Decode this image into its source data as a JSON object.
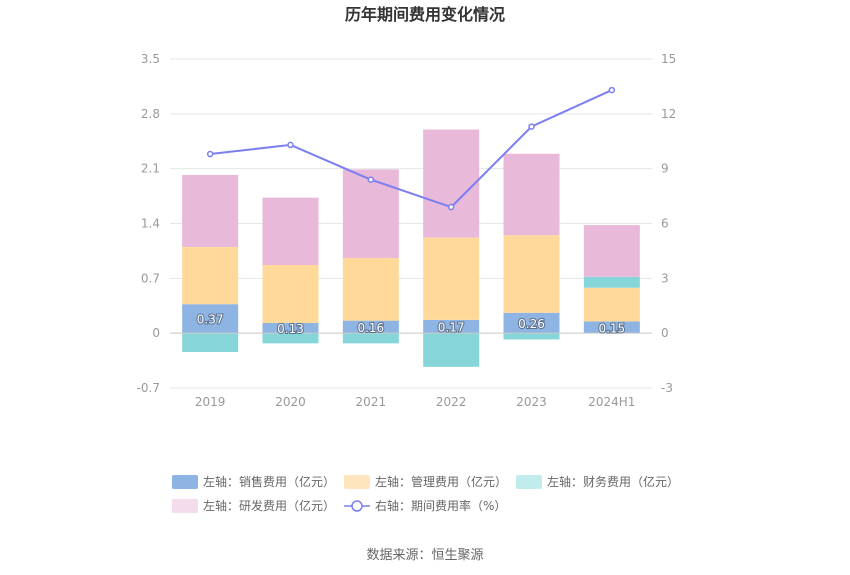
{
  "chart_data": {
    "type": "bar",
    "title": "历年期间费用变化情况",
    "categories": [
      "2019",
      "2020",
      "2021",
      "2022",
      "2023",
      "2024H1"
    ],
    "left_axis": {
      "ticks": [
        "3.5",
        "2.8",
        "2.1",
        "1.4",
        "0.7",
        "0",
        "-0.7"
      ],
      "ylim": [
        -0.7,
        3.5
      ]
    },
    "right_axis": {
      "ticks": [
        "15",
        "12",
        "9",
        "6",
        "3",
        "0",
        "-3"
      ],
      "ylim": [
        -3,
        15
      ]
    },
    "series": [
      {
        "name": "左轴：销售费用（亿元）",
        "axis": "left",
        "color": "#8eb4e3",
        "values": [
          0.37,
          0.13,
          0.16,
          0.17,
          0.26,
          0.15
        ],
        "labels": [
          "0.37",
          "0.13",
          "0.16",
          "0.17",
          "0.26",
          "0.15"
        ]
      },
      {
        "name": "左轴：管理费用（亿元）",
        "axis": "left",
        "color": "#ffd99a",
        "values": [
          0.73,
          0.74,
          0.8,
          1.05,
          0.99,
          0.43
        ]
      },
      {
        "name": "左轴：财务费用（亿元）",
        "axis": "left",
        "color": "#86d6d9",
        "values": [
          -0.24,
          -0.13,
          -0.13,
          -0.43,
          -0.08,
          0.14
        ]
      },
      {
        "name": "左轴：研发费用（亿元）",
        "axis": "left",
        "color": "#e8b9d9",
        "values": [
          0.92,
          0.86,
          1.13,
          1.38,
          1.04,
          0.66
        ]
      },
      {
        "name": "右轴：期间费用率（%）",
        "axis": "right",
        "type": "line",
        "color": "#7b7ff0",
        "values": [
          9.8,
          10.3,
          8.4,
          6.9,
          11.3,
          13.3
        ]
      }
    ],
    "legend_placement": "bottom",
    "grid": true
  },
  "footer": {
    "source": "数据来源：恒生聚源"
  }
}
